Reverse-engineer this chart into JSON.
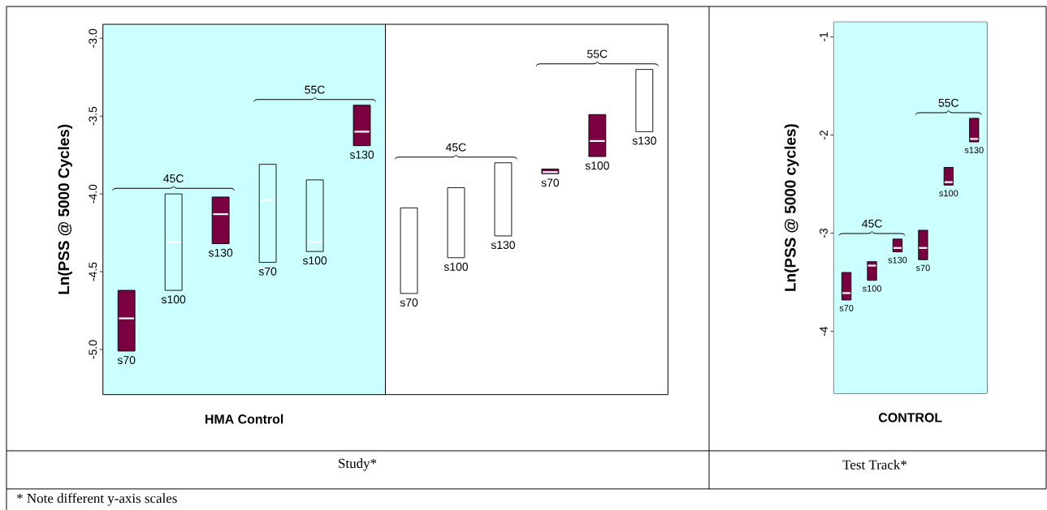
{
  "chart_data": [
    {
      "type": "box",
      "xlabel": "HMA Control",
      "ylabel": "Ln(PSS @ 5000 Cycles)",
      "categories": [
        "s70",
        "s100",
        "s130",
        "s70",
        "s100",
        "s130",
        "s70",
        "s100",
        "s130",
        "s70",
        "s100",
        "s130"
      ],
      "ylim": [
        -5.29,
        -2.91
      ],
      "yticks": [
        {
          "value": -5,
          "label": "-5.0"
        },
        {
          "value": -4.5,
          "label": "-4.5"
        },
        {
          "value": -4,
          "label": "-4.0"
        },
        {
          "value": -3.5,
          "label": "-3.5"
        },
        {
          "value": -3,
          "label": "-3.0"
        }
      ],
      "tick_labels": "y",
      "colors": [
        "#7b0041",
        null,
        "#7b0041",
        null,
        null,
        "#7b0041",
        null,
        null,
        null,
        "#7b0041",
        "#7b0041",
        null
      ],
      "boxes": [
        {
          "low": -5.01,
          "q1": -5.01,
          "median": -4.8,
          "q3": -4.62,
          "high": -4.62
        },
        {
          "low": -4.62,
          "q1": -4.62,
          "median": -4.31,
          "q3": -4.0,
          "high": -4.0
        },
        {
          "low": -4.32,
          "q1": -4.32,
          "median": -4.13,
          "q3": -4.02,
          "high": -4.02
        },
        {
          "low": -4.44,
          "q1": -4.44,
          "median": -4.04,
          "q3": -3.81,
          "high": -3.81
        },
        {
          "low": -4.37,
          "q1": -4.37,
          "median": -4.31,
          "q3": -3.91,
          "high": -3.91
        },
        {
          "low": -3.69,
          "q1": -3.69,
          "median": -3.6,
          "q3": -3.43,
          "high": -3.43
        },
        {
          "low": -4.64,
          "q1": -4.64,
          "median": null,
          "q3": -4.09,
          "high": -4.09
        },
        {
          "low": -4.41,
          "q1": -4.41,
          "median": null,
          "q3": -3.96,
          "high": -3.96
        },
        {
          "low": -4.27,
          "q1": -4.27,
          "median": null,
          "q3": -3.8,
          "high": -3.8
        },
        {
          "low": -3.87,
          "q1": -3.87,
          "median": -3.86,
          "q3": -3.84,
          "high": -3.84
        },
        {
          "low": -3.76,
          "q1": -3.76,
          "median": -3.66,
          "q3": -3.49,
          "high": -3.49
        },
        {
          "low": -3.6,
          "q1": -3.6,
          "median": null,
          "q3": -3.2,
          "high": -3.2
        }
      ],
      "annotations": [
        "45C",
        "55C",
        "45C",
        "55C",
        "Study*",
        "*  Note different y-axis scales"
      ]
    },
    {
      "type": "box",
      "xlabel": "CONTROL",
      "ylabel": "Ln(PSS @ 5000 cycles)",
      "categories": [
        "s70",
        "s100",
        "s130",
        "s70",
        "s100",
        "s130"
      ],
      "ylim": [
        -4.63,
        -0.85
      ],
      "bands": [
        {
          "axis": "y",
          "from": -4.63,
          "to": -0.85,
          "color": "#ccffff"
        }
      ],
      "yticks": [
        -4,
        -3,
        -2,
        -1
      ],
      "tick_labels": "y",
      "colors": [
        "#7b0041",
        "#7b0041",
        "#7b0041",
        "#7b0041",
        "#7b0041",
        "#7b0041"
      ],
      "boxes": [
        {
          "low": -3.68,
          "q1": -3.68,
          "median": -3.61,
          "q3": -3.4,
          "high": -3.4
        },
        {
          "low": -3.48,
          "q1": -3.48,
          "median": -3.33,
          "q3": -3.29,
          "high": -3.29
        },
        {
          "low": -3.19,
          "q1": -3.19,
          "median": -3.15,
          "q3": -3.06,
          "high": -3.06
        },
        {
          "low": -3.27,
          "q1": -3.27,
          "median": -3.15,
          "q3": -2.97,
          "high": -2.97
        },
        {
          "low": -2.51,
          "q1": -2.51,
          "median": -2.48,
          "q3": -2.33,
          "high": -2.33
        },
        {
          "low": -2.07,
          "q1": -2.07,
          "median": -2.04,
          "q3": -1.83,
          "high": -1.83
        }
      ],
      "annotations": [
        "45C",
        "55C",
        "Test Track*"
      ]
    }
  ]
}
